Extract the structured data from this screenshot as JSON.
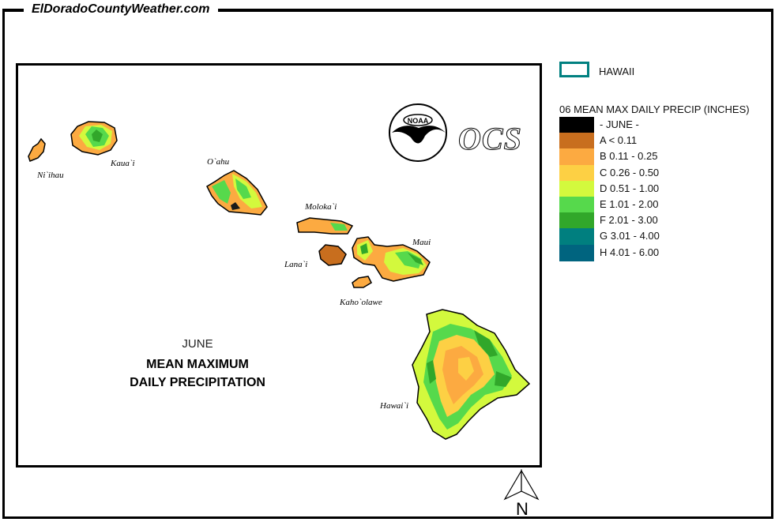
{
  "site_name": "ElDoradoCountyWeather.com",
  "map": {
    "title_month": "JUNE",
    "title_line1": "MEAN MAXIMUM",
    "title_line2": "DAILY PRECIPITATION",
    "islands": [
      "Ni`ihau",
      "Kaua`i",
      "O`ahu",
      "Moloka`i",
      "Lana`i",
      "Maui",
      "Kaho`olawe",
      "Hawai`i"
    ],
    "logos": {
      "noaa": "NOAA",
      "ocs": "OCS"
    },
    "north_label": "N"
  },
  "legend": {
    "boundary_label": "HAWAII",
    "boundary_color": "#008080",
    "title": "06 MEAN MAX DAILY PRECIP (INCHES)",
    "items": [
      {
        "label": "- JUNE -",
        "color": "#000000"
      },
      {
        "label": "A < 0.11",
        "color": "#c86e1e"
      },
      {
        "label": "B 0.11 - 0.25",
        "color": "#fcaa41"
      },
      {
        "label": "C 0.26 - 0.50",
        "color": "#fdd044"
      },
      {
        "label": "D 0.51 - 1.00",
        "color": "#d3f93d"
      },
      {
        "label": "E 1.01 - 2.00",
        "color": "#56d94c"
      },
      {
        "label": "F 2.01 - 3.00",
        "color": "#31a72a"
      },
      {
        "label": "G 3.01 - 4.00",
        "color": "#007f7f"
      },
      {
        "label": "H 4.01 - 6.00",
        "color": "#00647f"
      }
    ]
  }
}
